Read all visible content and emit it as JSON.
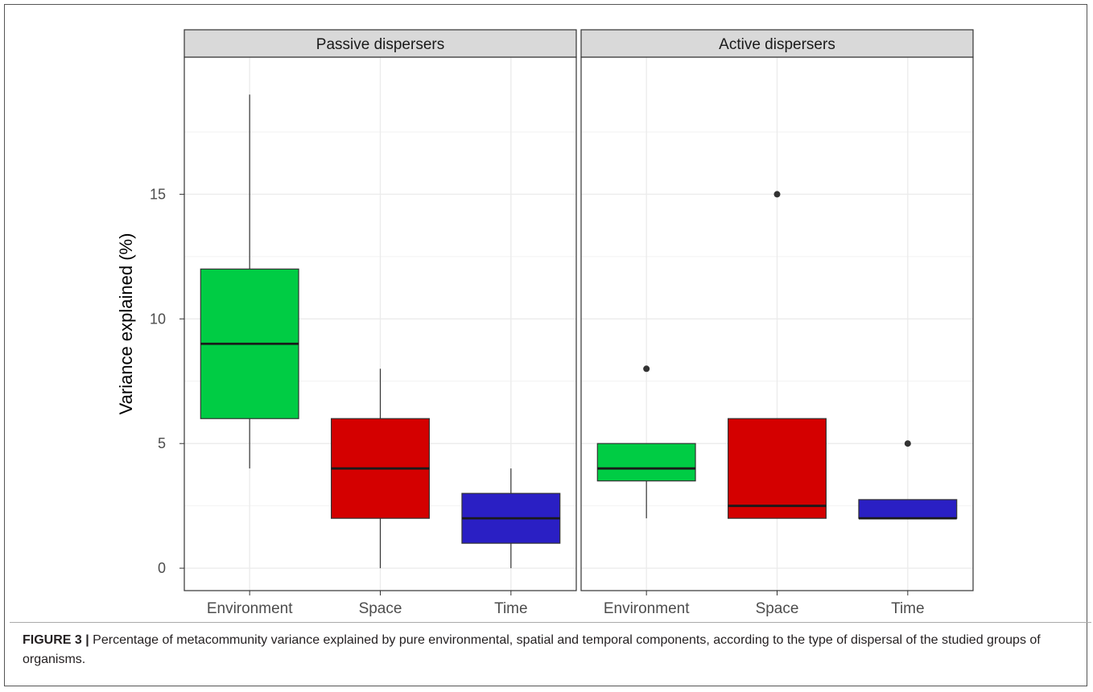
{
  "figure": {
    "label": "FIGURE 3 |",
    "caption": "Percentage of metacommunity variance explained by pure environmental, spatial and temporal components, according to the type of dispersal of the studied groups of organisms."
  },
  "chart_data": {
    "type": "boxplot",
    "ylabel": "Variance explained (%)",
    "ylim": [
      -0.9,
      20.5
    ],
    "yticks": [
      0,
      5,
      10,
      15
    ],
    "categories": [
      "Environment",
      "Space",
      "Time"
    ],
    "colors": {
      "Environment": "#00cc44",
      "Space": "#d40000",
      "Time": "#2a1fc4"
    },
    "grid": true,
    "panels": [
      {
        "title": "Passive dispersers",
        "boxes": [
          {
            "category": "Environment",
            "min": 4,
            "q1": 6,
            "median": 9,
            "q3": 12,
            "max": 19,
            "outliers": []
          },
          {
            "category": "Space",
            "min": 0,
            "q1": 2,
            "median": 4,
            "q3": 6,
            "max": 8,
            "outliers": []
          },
          {
            "category": "Time",
            "min": 0,
            "q1": 1,
            "median": 2,
            "q3": 3,
            "max": 4,
            "outliers": []
          }
        ]
      },
      {
        "title": "Active dispersers",
        "boxes": [
          {
            "category": "Environment",
            "min": 2,
            "q1": 3.5,
            "median": 4,
            "q3": 5,
            "max": 5,
            "outliers": [
              8
            ]
          },
          {
            "category": "Space",
            "min": 2,
            "q1": 2,
            "median": 2.5,
            "q3": 6,
            "max": 6,
            "outliers": [
              15
            ]
          },
          {
            "category": "Time",
            "min": 2,
            "q1": 2,
            "median": 2,
            "q3": 2.75,
            "max": 2.75,
            "outliers": [
              5
            ]
          }
        ]
      }
    ]
  }
}
